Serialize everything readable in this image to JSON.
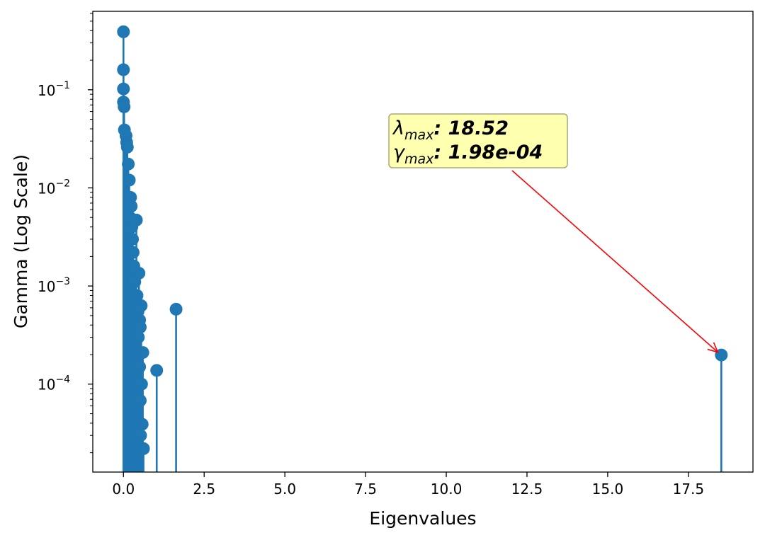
{
  "chart_data": {
    "type": "scatter",
    "subtype": "stem",
    "xlabel": "Eigenvalues",
    "ylabel": "Gamma (Log Scale)",
    "y_scale": "log",
    "xlim": [
      -0.95,
      19.5
    ],
    "ylim": [
      1.27e-05,
      0.63
    ],
    "grid": false,
    "x_ticks": [
      {
        "value": 0.0,
        "label": "0.0"
      },
      {
        "value": 2.5,
        "label": "2.5"
      },
      {
        "value": 5.0,
        "label": "5.0"
      },
      {
        "value": 7.5,
        "label": "7.5"
      },
      {
        "value": 10.0,
        "label": "10.0"
      },
      {
        "value": 12.5,
        "label": "12.5"
      },
      {
        "value": 15.0,
        "label": "15.0"
      },
      {
        "value": 17.5,
        "label": "17.5"
      }
    ],
    "y_ticks": [
      {
        "value": 0.1,
        "base": "10",
        "exp": "−1"
      },
      {
        "value": 0.01,
        "base": "10",
        "exp": "−2"
      },
      {
        "value": 0.001,
        "base": "10",
        "exp": "−3"
      },
      {
        "value": 0.0001,
        "base": "10",
        "exp": "−4"
      }
    ],
    "series": [
      {
        "color": "#1f77b4",
        "points": [
          {
            "x": 0.0,
            "y": 0.39
          },
          {
            "x": 0.0,
            "y": 0.16
          },
          {
            "x": 0.0,
            "y": 0.102
          },
          {
            "x": 0.0,
            "y": 0.075
          },
          {
            "x": 0.02,
            "y": 0.067
          },
          {
            "x": 0.03,
            "y": 0.039
          },
          {
            "x": 0.08,
            "y": 0.034
          },
          {
            "x": 0.1,
            "y": 0.029
          },
          {
            "x": 0.12,
            "y": 0.026
          },
          {
            "x": 0.15,
            "y": 0.0175
          },
          {
            "x": 0.18,
            "y": 0.012
          },
          {
            "x": 0.22,
            "y": 0.008
          },
          {
            "x": 0.24,
            "y": 0.0065
          },
          {
            "x": 0.2,
            "y": 0.005
          },
          {
            "x": 0.26,
            "y": 0.004
          },
          {
            "x": 0.4,
            "y": 0.0047
          },
          {
            "x": 0.28,
            "y": 0.003
          },
          {
            "x": 0.3,
            "y": 0.0022
          },
          {
            "x": 0.32,
            "y": 0.0016
          },
          {
            "x": 0.38,
            "y": 0.0014
          },
          {
            "x": 0.48,
            "y": 0.00135
          },
          {
            "x": 0.35,
            "y": 0.0011
          },
          {
            "x": 0.42,
            "y": 0.0008
          },
          {
            "x": 0.55,
            "y": 0.00063
          },
          {
            "x": 0.45,
            "y": 0.00055
          },
          {
            "x": 0.5,
            "y": 0.00045
          },
          {
            "x": 0.52,
            "y": 0.00038
          },
          {
            "x": 0.46,
            "y": 0.0003
          },
          {
            "x": 0.6,
            "y": 0.00021
          },
          {
            "x": 0.5,
            "y": 0.00015
          },
          {
            "x": 0.56,
            "y": 0.0001
          },
          {
            "x": 0.52,
            "y": 6.8e-05
          },
          {
            "x": 0.58,
            "y": 3.9e-05
          },
          {
            "x": 0.53,
            "y": 3e-05
          },
          {
            "x": 0.62,
            "y": 2.2e-05
          },
          {
            "x": 1.03,
            "y": 0.000138
          },
          {
            "x": 1.63,
            "y": 0.00058
          },
          {
            "x": 18.52,
            "y": 0.000198
          }
        ]
      }
    ],
    "annotation": {
      "lines": [
        {
          "sym": "λ",
          "sub": "max",
          "text": ": 18.52"
        },
        {
          "sym": "γ",
          "sub": "max",
          "text": ": 1.98e-04"
        }
      ],
      "target": {
        "x": 18.52,
        "y": 0.000198
      },
      "box_fill": "#ffffb0",
      "box_stroke": "#a8a87a",
      "arrow_color": "#ff0000"
    }
  }
}
